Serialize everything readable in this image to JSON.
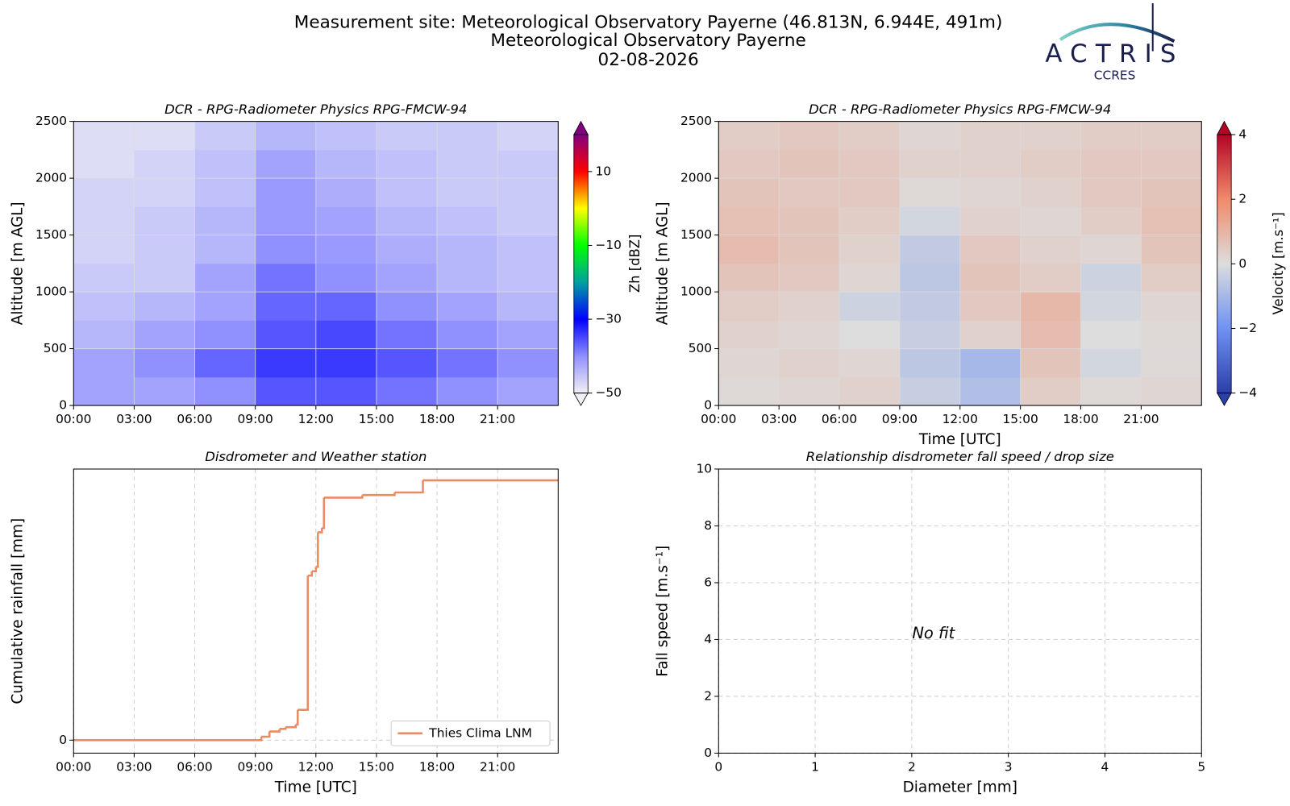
{
  "header": {
    "title_lines": [
      "Measurement site: Meteorological Observatory Payerne (46.813N, 6.944E, 491m)",
      "Meteorological Observatory Payerne",
      "02-08-2026"
    ],
    "logo": {
      "name": "ACTRIS",
      "subtitle": "CCRES"
    }
  },
  "chart_data": [
    {
      "type": "heatmap",
      "title": "DCR - RPG-Radiometer Physics RPG-FMCW-94",
      "ylabel": "Altitude [m AGL]",
      "colorbar_label": "Zh [dBZ]",
      "xlim": [
        0,
        24
      ],
      "xticks": [
        {
          "value": 0,
          "label": "00:00"
        },
        {
          "value": 3,
          "label": "03:00"
        },
        {
          "value": 6,
          "label": "06:00"
        },
        {
          "value": 9,
          "label": "09:00"
        },
        {
          "value": 12,
          "label": "12:00"
        },
        {
          "value": 15,
          "label": "15:00"
        },
        {
          "value": 18,
          "label": "18:00"
        },
        {
          "value": 21,
          "label": "21:00"
        }
      ],
      "ylim": [
        0,
        2500
      ],
      "yticks": [
        0,
        500,
        1000,
        1500,
        2000,
        2500
      ],
      "grid": "solid",
      "x_edges": [
        0,
        3,
        6,
        9,
        12,
        15,
        18,
        21,
        24
      ],
      "y_edges": [
        0,
        250,
        500,
        750,
        1000,
        1250,
        1500,
        1750,
        2000,
        2250,
        2500
      ],
      "z": [
        [
          -42,
          -42,
          -40,
          -36,
          -36,
          -38,
          -40,
          -42
        ],
        [
          -42,
          -40,
          -37,
          -34,
          -34,
          -36,
          -38,
          -40
        ],
        [
          -44,
          -42,
          -40,
          -36,
          -35,
          -38,
          -40,
          -42
        ],
        [
          -45,
          -44,
          -42,
          -37,
          -37,
          -40,
          -42,
          -44
        ],
        [
          -46,
          -46,
          -42,
          -38,
          -40,
          -42,
          -44,
          -45
        ],
        [
          -47,
          -46,
          -44,
          -40,
          -41,
          -43,
          -44,
          -45
        ],
        [
          -47,
          -46,
          -44,
          -41,
          -42,
          -44,
          -45,
          -46
        ],
        [
          -47,
          -47,
          -45,
          -41,
          -43,
          -45,
          -46,
          -46
        ],
        [
          -48,
          -47,
          -45,
          -42,
          -44,
          -45,
          -46,
          -46
        ],
        [
          -48,
          -48,
          -46,
          -44,
          -45,
          -46,
          -46,
          -47
        ]
      ],
      "zlim": [
        -50,
        20
      ],
      "zticks": [
        {
          "value": -50,
          "label": "−50"
        },
        {
          "value": -30,
          "label": "−30"
        },
        {
          "value": -10,
          "label": "−10"
        },
        10
      ],
      "colormap": [
        "#f0f0f4",
        "#9090ff",
        "#0000ff",
        "#00a0a0",
        "#00ff00",
        "#ffff00",
        "#ff0000",
        "#800080"
      ]
    },
    {
      "type": "heatmap",
      "title": "DCR - RPG-Radiometer Physics RPG-FMCW-94",
      "ylabel": "Altitude [m AGL]",
      "xlabel": "Time [UTC]",
      "colorbar_label": "Velocity [m.s⁻¹]",
      "xlim": [
        0,
        24
      ],
      "xticks": [
        {
          "value": 0,
          "label": "00:00"
        },
        {
          "value": 3,
          "label": "03:00"
        },
        {
          "value": 6,
          "label": "06:00"
        },
        {
          "value": 9,
          "label": "09:00"
        },
        {
          "value": 12,
          "label": "12:00"
        },
        {
          "value": 15,
          "label": "15:00"
        },
        {
          "value": 18,
          "label": "18:00"
        },
        {
          "value": 21,
          "label": "21:00"
        }
      ],
      "ylim": [
        0,
        2500
      ],
      "yticks": [
        0,
        500,
        1000,
        1500,
        2000,
        2500
      ],
      "grid": "solid",
      "x_edges": [
        0,
        3,
        6,
        9,
        12,
        15,
        18,
        21,
        24
      ],
      "y_edges": [
        0,
        250,
        500,
        750,
        1000,
        1250,
        1500,
        1750,
        2000,
        2250,
        2500
      ],
      "z": [
        [
          0.1,
          0.2,
          0.3,
          -0.4,
          -0.8,
          0.4,
          0.1,
          0.2
        ],
        [
          0.2,
          0.3,
          0.2,
          -0.6,
          -1.0,
          0.6,
          -0.2,
          0.1
        ],
        [
          0.3,
          0.2,
          0.0,
          -0.4,
          0.3,
          0.8,
          0.0,
          0.1
        ],
        [
          0.4,
          0.3,
          -0.3,
          -0.5,
          0.5,
          0.9,
          -0.2,
          0.2
        ],
        [
          0.6,
          0.5,
          0.2,
          -0.6,
          0.6,
          0.4,
          -0.3,
          0.4
        ],
        [
          0.8,
          0.6,
          0.3,
          -0.5,
          0.5,
          0.3,
          0.2,
          0.6
        ],
        [
          0.7,
          0.6,
          0.4,
          -0.2,
          0.3,
          0.2,
          0.4,
          0.7
        ],
        [
          0.6,
          0.5,
          0.5,
          0.1,
          0.2,
          0.3,
          0.5,
          0.6
        ],
        [
          0.5,
          0.6,
          0.5,
          0.3,
          0.3,
          0.4,
          0.5,
          0.5
        ],
        [
          0.4,
          0.5,
          0.4,
          0.2,
          0.3,
          0.3,
          0.4,
          0.4
        ]
      ],
      "zlim": [
        -4,
        4
      ],
      "zticks": [
        {
          "value": -4,
          "label": "−4"
        },
        {
          "value": -2,
          "label": "−2"
        },
        0,
        2,
        4
      ],
      "colormap": [
        "#2b3fa8",
        "#6f92f3",
        "#dddddd",
        "#f08a6a",
        "#b40426"
      ]
    },
    {
      "type": "step",
      "title": "Disdrometer and Weather station",
      "ylabel": "Cumulative rainfall [mm]",
      "xlabel": "Time [UTC]",
      "xlim": [
        0,
        24
      ],
      "xticks": [
        {
          "value": 0,
          "label": "00:00"
        },
        {
          "value": 3,
          "label": "03:00"
        },
        {
          "value": 6,
          "label": "06:00"
        },
        {
          "value": 9,
          "label": "09:00"
        },
        {
          "value": 12,
          "label": "12:00"
        },
        {
          "value": 15,
          "label": "15:00"
        },
        {
          "value": 18,
          "label": "18:00"
        },
        {
          "value": 21,
          "label": "21:00"
        }
      ],
      "ylim": [
        -0.15,
        3.13
      ],
      "yticks": [
        0
      ],
      "grid": "dashed",
      "legend": "lower right",
      "series": [
        {
          "name": "Thies Clima LNM",
          "color": "#ee8a62",
          "x": [
            0,
            9.3,
            9.7,
            10.2,
            10.5,
            11.0,
            11.1,
            11.6,
            11.8,
            12.0,
            12.1,
            12.3,
            12.4,
            14.3,
            15.9,
            17.3
          ],
          "values": [
            0,
            0.04,
            0.1,
            0.13,
            0.15,
            0.18,
            0.35,
            1.9,
            1.95,
            2.0,
            2.4,
            2.45,
            2.8,
            2.83,
            2.86,
            3.0
          ]
        }
      ]
    },
    {
      "type": "scatter",
      "title": "Relationship disdrometer fall speed / drop size",
      "ylabel": "Fall speed [m.s⁻¹]",
      "xlabel": "Diameter [mm]",
      "annotation": "No fit",
      "xlim": [
        0,
        5
      ],
      "xticks": [
        0,
        1,
        2,
        3,
        4,
        5
      ],
      "ylim": [
        0,
        10
      ],
      "yticks": [
        0,
        2,
        4,
        6,
        8,
        10
      ],
      "grid": "dashed"
    }
  ]
}
